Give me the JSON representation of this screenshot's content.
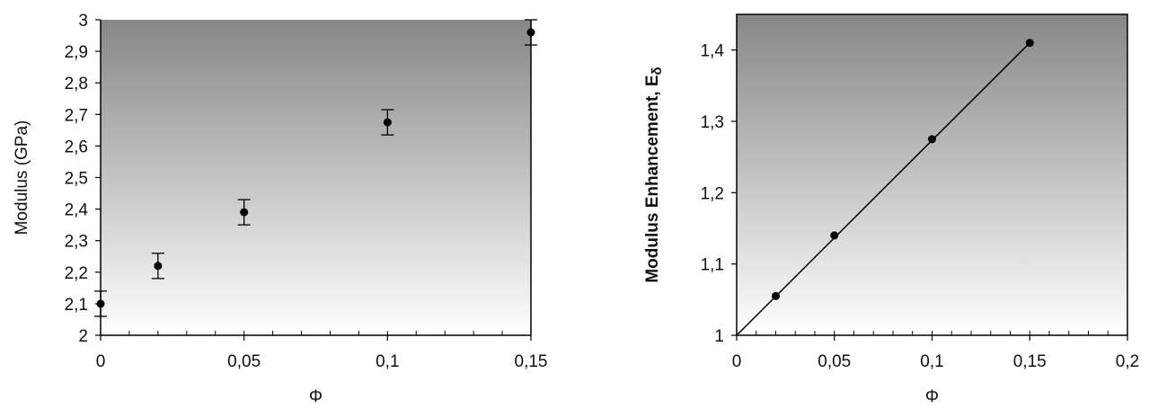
{
  "chart_data": [
    {
      "type": "scatter",
      "xlabel": "Φ",
      "ylabel": "Modulus (GPa)",
      "xlim": [
        0,
        0.15
      ],
      "ylim": [
        2,
        3
      ],
      "xticks": [
        0,
        0.05,
        0.1,
        0.15
      ],
      "xtick_labels": [
        "0",
        "0,05",
        "0,1",
        "0,15"
      ],
      "yticks": [
        2,
        2.1,
        2.2,
        2.3,
        2.4,
        2.5,
        2.6,
        2.7,
        2.8,
        2.9,
        3
      ],
      "ytick_labels": [
        "2",
        "2,1",
        "2,2",
        "2,3",
        "2,4",
        "2,5",
        "2,6",
        "2,7",
        "2,8",
        "2,9",
        "3"
      ],
      "grid": false,
      "x": [
        0,
        0.02,
        0.05,
        0.1,
        0.15
      ],
      "y": [
        2.1,
        2.22,
        2.39,
        2.675,
        2.96
      ],
      "error": [
        0.04,
        0.04,
        0.04,
        0.04,
        0.04
      ]
    },
    {
      "type": "scatter",
      "xlabel": "Φ",
      "ylabel": "Modulus  Enhancement, E",
      "ylabel_subscript": "δ",
      "xlim": [
        0,
        0.2
      ],
      "ylim": [
        1,
        1.45
      ],
      "xticks": [
        0,
        0.05,
        0.1,
        0.15,
        0.2
      ],
      "xtick_labels": [
        "0",
        "0,05",
        "0,1",
        "0,15",
        "0,2"
      ],
      "yticks": [
        1,
        1.1,
        1.2,
        1.3,
        1.4
      ],
      "ytick_labels": [
        "1",
        "1,1",
        "1,2",
        "1,3",
        "1,4"
      ],
      "grid": false,
      "x": [
        0.02,
        0.05,
        0.1,
        0.15
      ],
      "y": [
        1.055,
        1.14,
        1.275,
        1.41
      ],
      "fit_line": {
        "x": [
          0,
          0.15
        ],
        "y": [
          1,
          1.41
        ]
      }
    }
  ],
  "colors": {
    "bg_top": "#878787",
    "bg_bottom": "#ffffff",
    "axis": "#000000",
    "marker": "#000000"
  }
}
